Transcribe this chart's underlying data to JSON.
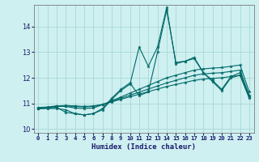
{
  "xlabel": "Humidex (Indice chaleur)",
  "xlim": [
    -0.5,
    23.5
  ],
  "ylim": [
    9.85,
    14.85
  ],
  "background_color": "#cff0f0",
  "line_color": "#006868",
  "grid_color": "#a8d8d8",
  "lines": [
    [
      10.8,
      10.8,
      10.8,
      10.75,
      10.6,
      10.55,
      10.6,
      10.75,
      11.15,
      11.5,
      11.75,
      13.2,
      12.45,
      13.2,
      14.75,
      12.55,
      12.65,
      12.75,
      12.2,
      11.85,
      11.5,
      12.0,
      12.1,
      11.25
    ],
    [
      10.8,
      10.82,
      10.85,
      10.65,
      10.6,
      10.55,
      10.6,
      10.8,
      11.2,
      11.55,
      11.8,
      11.3,
      11.45,
      13.0,
      14.65,
      12.6,
      12.65,
      12.8,
      12.2,
      11.9,
      11.55,
      12.05,
      12.2,
      11.3
    ],
    [
      10.8,
      10.82,
      10.9,
      10.88,
      10.82,
      10.8,
      10.82,
      10.95,
      11.1,
      11.25,
      11.4,
      11.55,
      11.7,
      11.85,
      12.0,
      12.1,
      12.2,
      12.3,
      12.35,
      12.38,
      12.4,
      12.45,
      12.5,
      11.45
    ],
    [
      10.82,
      10.84,
      10.88,
      10.9,
      10.88,
      10.86,
      10.88,
      10.95,
      11.08,
      11.2,
      11.32,
      11.44,
      11.56,
      11.68,
      11.8,
      11.9,
      12.0,
      12.1,
      12.15,
      12.18,
      12.2,
      12.25,
      12.3,
      11.3
    ],
    [
      10.84,
      10.86,
      10.9,
      10.92,
      10.9,
      10.88,
      10.9,
      10.96,
      11.06,
      11.16,
      11.26,
      11.36,
      11.46,
      11.56,
      11.66,
      11.74,
      11.82,
      11.9,
      11.95,
      11.98,
      12.0,
      12.05,
      12.1,
      11.2
    ]
  ],
  "x": [
    0,
    1,
    2,
    3,
    4,
    5,
    6,
    7,
    8,
    9,
    10,
    11,
    12,
    13,
    14,
    15,
    16,
    17,
    18,
    19,
    20,
    21,
    22,
    23
  ],
  "yticks": [
    10,
    11,
    12,
    13,
    14
  ],
  "xtick_labels": [
    "0",
    "1",
    "2",
    "3",
    "4",
    "5",
    "6",
    "7",
    "8",
    "9",
    "10",
    "11",
    "12",
    "13",
    "14",
    "15",
    "16",
    "17",
    "18",
    "19",
    "20",
    "21",
    "22",
    "23"
  ]
}
